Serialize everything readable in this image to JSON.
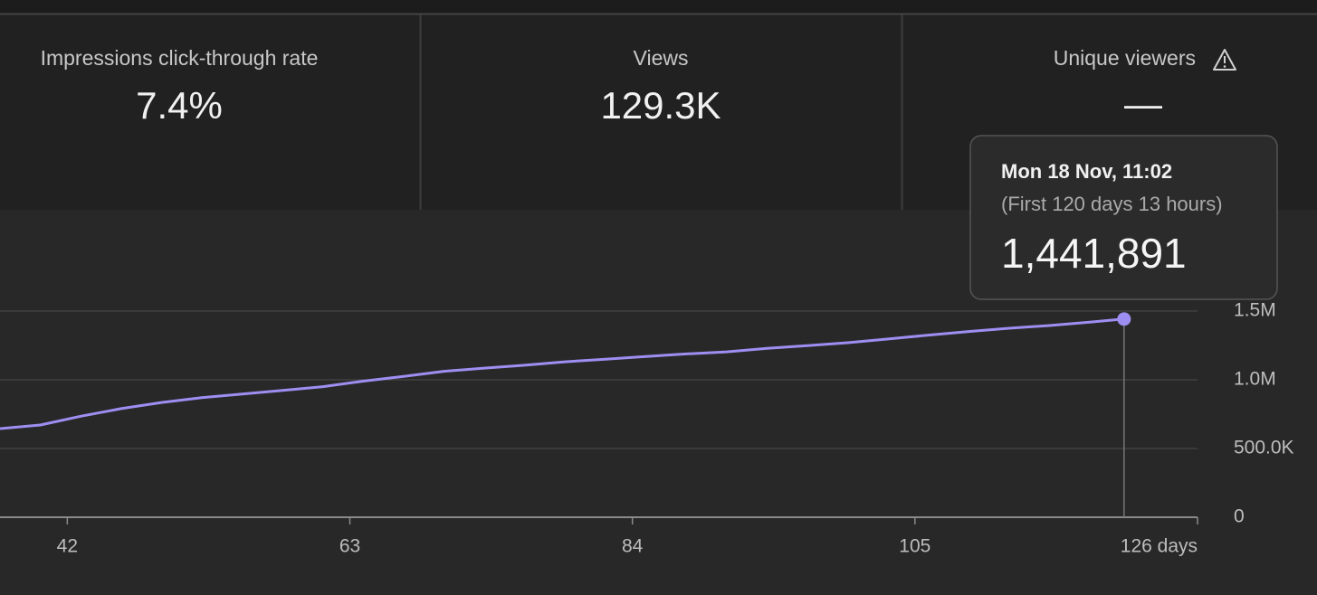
{
  "metrics": [
    {
      "label": "Impressions click-through rate",
      "value": "7.4%"
    },
    {
      "label": "Views",
      "value": "129.3K"
    },
    {
      "label": "Unique viewers",
      "value": "—"
    }
  ],
  "tooltip": {
    "date": "Mon 18 Nov, 11:02",
    "period": "(First 120 days 13 hours)",
    "value": "1,441,891"
  },
  "chart_data": {
    "type": "line",
    "x": [
      37,
      40,
      43,
      46,
      49,
      52,
      55,
      58,
      61,
      64,
      67,
      70,
      73,
      76,
      79,
      82,
      85,
      88,
      91,
      94,
      97,
      100,
      103,
      106,
      109,
      112,
      115,
      118,
      120.54
    ],
    "series": [
      {
        "color": "#9d8ff2",
        "values": [
          645000,
          671000,
          735000,
          790000,
          835000,
          870000,
          897000,
          923000,
          950000,
          990000,
          1025000,
          1062000,
          1085000,
          1106000,
          1131000,
          1150000,
          1170000,
          1188000,
          1203000,
          1228000,
          1249000,
          1270000,
          1297000,
          1325000,
          1351000,
          1375000,
          1395000,
          1420000,
          1441891
        ]
      }
    ],
    "xlim": [
      37,
      126
    ],
    "xticks": [
      42,
      63,
      84,
      105,
      {
        "value": 126,
        "label": "126 days"
      }
    ],
    "ylim": [
      0,
      1500000
    ],
    "yticks": [
      0,
      {
        "value": 500000,
        "label": "500.0K"
      },
      {
        "value": 1000000,
        "label": "1.0M"
      },
      {
        "value": 1500000,
        "label": "1.5M"
      }
    ],
    "grid": true
  }
}
